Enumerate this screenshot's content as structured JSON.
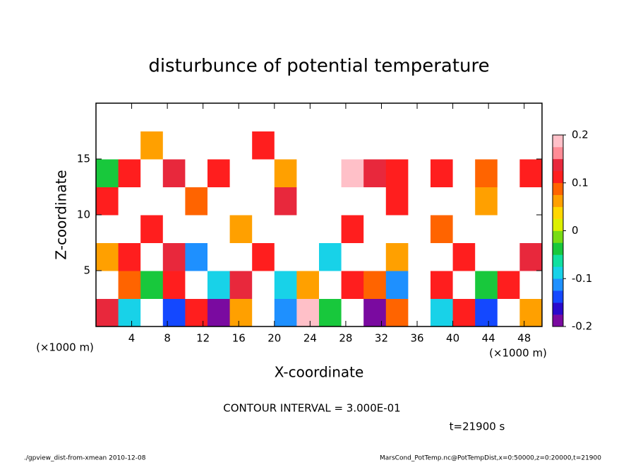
{
  "chart_data": {
    "type": "heatmap",
    "title": "disturbunce of potential temperature",
    "x_label": "X-coordinate",
    "y_label": "Z-coordinate",
    "x_unit": "(×1000 m)",
    "y_unit": "(×1000 m)",
    "xlim": [
      0,
      50
    ],
    "xticks": [
      4,
      8,
      12,
      16,
      20,
      24,
      28,
      32,
      36,
      40,
      44,
      48
    ],
    "ylim": [
      0,
      20
    ],
    "yticks": [
      5,
      10,
      15
    ],
    "z": [
      [
        0.15,
        -0.1,
        0.3,
        -0.15,
        0.1,
        -0.2,
        0.05,
        0.3,
        -0.12,
        0.18,
        -0.05,
        0.25,
        -0.18,
        0.08,
        0.3,
        -0.1,
        0.12,
        -0.15,
        0.3,
        0.05
      ],
      [
        0.3,
        0.08,
        -0.05,
        0.12,
        0.3,
        -0.08,
        0.15,
        0.3,
        -0.1,
        0.05,
        0.3,
        0.1,
        0.08,
        -0.12,
        0.3,
        0.1,
        0.3,
        -0.05,
        0.12,
        0.3
      ],
      [
        0.05,
        0.1,
        0.3,
        0.15,
        -0.12,
        0.3,
        0.3,
        0.1,
        0.3,
        0.3,
        -0.08,
        0.3,
        0.3,
        0.05,
        0.3,
        0.3,
        0.1,
        0.3,
        0.3,
        0.15
      ],
      [
        0.3,
        0.3,
        0.1,
        0.3,
        0.3,
        0.3,
        0.05,
        0.3,
        0.3,
        0.3,
        0.3,
        0.12,
        0.3,
        0.3,
        0.3,
        0.08,
        0.3,
        0.3,
        0.3,
        0.3
      ],
      [
        0.1,
        0.3,
        0.3,
        0.3,
        0.08,
        0.3,
        0.3,
        0.3,
        0.15,
        0.3,
        0.3,
        0.3,
        0.3,
        0.1,
        0.3,
        0.3,
        0.3,
        0.05,
        0.3,
        0.3
      ],
      [
        -0.05,
        0.12,
        0.3,
        0.15,
        0.3,
        0.1,
        0.3,
        0.3,
        0.05,
        0.3,
        0.3,
        0.18,
        0.15,
        0.12,
        0.3,
        0.1,
        0.3,
        0.08,
        0.3,
        0.1
      ],
      [
        0.3,
        0.3,
        0.05,
        0.3,
        0.3,
        0.3,
        0.3,
        0.1,
        0.3,
        0.3,
        0.3,
        0.3,
        0.3,
        0.3,
        0.3,
        0.3,
        0.3,
        0.3,
        0.3,
        0.3
      ],
      [
        0.3,
        0.3,
        0.3,
        0.3,
        0.3,
        0.3,
        0.3,
        0.3,
        0.3,
        0.3,
        0.3,
        0.3,
        0.3,
        0.3,
        0.3,
        0.3,
        0.3,
        0.3,
        0.3,
        0.3
      ]
    ],
    "colorbar": {
      "lim": [
        -0.2,
        0.2
      ],
      "ticks": [
        0.2,
        0.1,
        0,
        -0.1,
        -0.2
      ],
      "colors": [
        "#7a0aa0",
        "#2a0acc",
        "#1448ff",
        "#1e90ff",
        "#18d2e8",
        "#10e0a0",
        "#18c83c",
        "#78dc14",
        "#dcf000",
        "#ffd700",
        "#ffa000",
        "#ff6400",
        "#ff1e1e",
        "#e8283c",
        "#ff8c96",
        "#ffc0c8"
      ]
    },
    "contour_note": "CONTOUR INTERVAL = 3.000E-01",
    "time_label": "t=21900 s",
    "footer_left": "./gpview_dist-from-xmean  2010-12-08",
    "footer_right": "MarsCond_PotTemp.nc@PotTempDist,x=0:50000,z=0:20000,t=21900"
  }
}
